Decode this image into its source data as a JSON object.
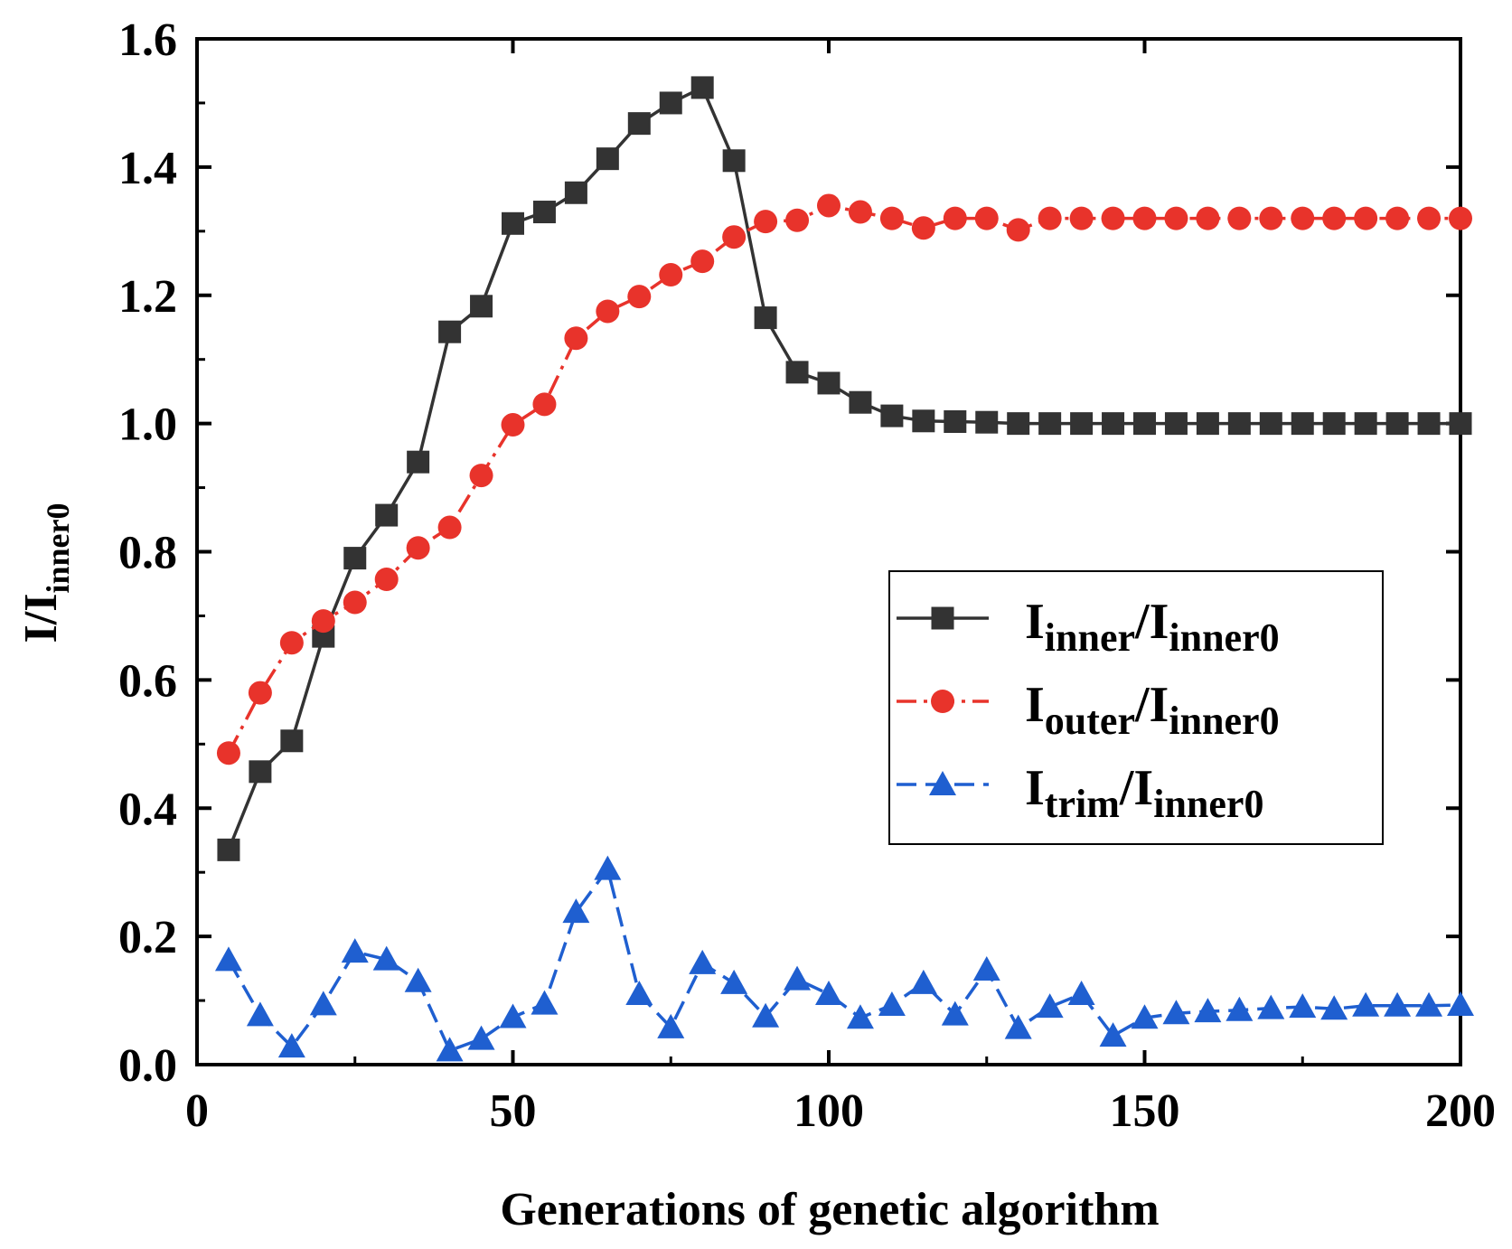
{
  "chart_data": {
    "type": "line",
    "title": "",
    "xlabel": "Generations of genetic algorithm",
    "ylabel": {
      "main": "I/I",
      "sub": "inner0"
    },
    "xlim": [
      0,
      200
    ],
    "ylim": [
      0.0,
      1.6
    ],
    "xticks": [
      0,
      50,
      100,
      150,
      200
    ],
    "yticks": [
      0.0,
      0.2,
      0.4,
      0.6,
      0.8,
      1.0,
      1.2,
      1.4,
      1.6
    ],
    "x_tick_labels": [
      "0",
      "50",
      "100",
      "150",
      "200"
    ],
    "y_tick_labels": [
      "0.0",
      "0.2",
      "0.4",
      "0.6",
      "0.8",
      "1.0",
      "1.2",
      "1.4",
      "1.6"
    ],
    "grid": false,
    "legend_position": "center-right",
    "x": [
      5,
      10,
      15,
      20,
      25,
      30,
      35,
      40,
      45,
      50,
      55,
      60,
      65,
      70,
      75,
      80,
      85,
      90,
      95,
      100,
      105,
      110,
      115,
      120,
      125,
      130,
      135,
      140,
      145,
      150,
      155,
      160,
      165,
      170,
      175,
      180,
      185,
      190,
      195,
      200
    ],
    "series": [
      {
        "legend": {
          "main": "I",
          "sub": "inner",
          "sep": "/I",
          "sub2": "inner0"
        },
        "color": "#333333",
        "marker": "square",
        "dash": "solid",
        "values": [
          0.335,
          0.457,
          0.505,
          0.668,
          0.79,
          0.857,
          0.94,
          1.143,
          1.183,
          1.312,
          1.33,
          1.36,
          1.413,
          1.468,
          1.5,
          1.524,
          1.41,
          1.165,
          1.08,
          1.063,
          1.033,
          1.012,
          1.004,
          1.003,
          1.002,
          1.0,
          1.0,
          1.0,
          1.0,
          1.0,
          1.0,
          1.0,
          1.0,
          1.0,
          1.0,
          1.0,
          1.0,
          1.0,
          1.0,
          1.0
        ]
      },
      {
        "legend": {
          "main": "I",
          "sub": "outer",
          "sep": "/I",
          "sub2": "inner0"
        },
        "color": "#e8332b",
        "marker": "circle",
        "dash": "dashdot",
        "values": [
          0.486,
          0.58,
          0.658,
          0.692,
          0.721,
          0.757,
          0.806,
          0.838,
          0.919,
          0.998,
          1.03,
          1.133,
          1.175,
          1.198,
          1.232,
          1.253,
          1.291,
          1.315,
          1.317,
          1.34,
          1.33,
          1.32,
          1.305,
          1.32,
          1.32,
          1.302,
          1.32,
          1.32,
          1.32,
          1.32,
          1.32,
          1.32,
          1.32,
          1.32,
          1.32,
          1.32,
          1.32,
          1.32,
          1.32,
          1.32
        ]
      },
      {
        "legend": {
          "main": "I",
          "sub": "trim",
          "sep": "/I",
          "sub2": "inner0"
        },
        "color": "#1f5fd0",
        "marker": "triangle",
        "dash": "dashed",
        "values": [
          0.163,
          0.077,
          0.028,
          0.094,
          0.176,
          0.164,
          0.13,
          0.022,
          0.04,
          0.074,
          0.095,
          0.238,
          0.305,
          0.11,
          0.058,
          0.158,
          0.127,
          0.075,
          0.133,
          0.11,
          0.073,
          0.093,
          0.127,
          0.078,
          0.148,
          0.057,
          0.09,
          0.11,
          0.045,
          0.073,
          0.08,
          0.083,
          0.085,
          0.088,
          0.09,
          0.087,
          0.092,
          0.092,
          0.092,
          0.093
        ]
      }
    ]
  }
}
